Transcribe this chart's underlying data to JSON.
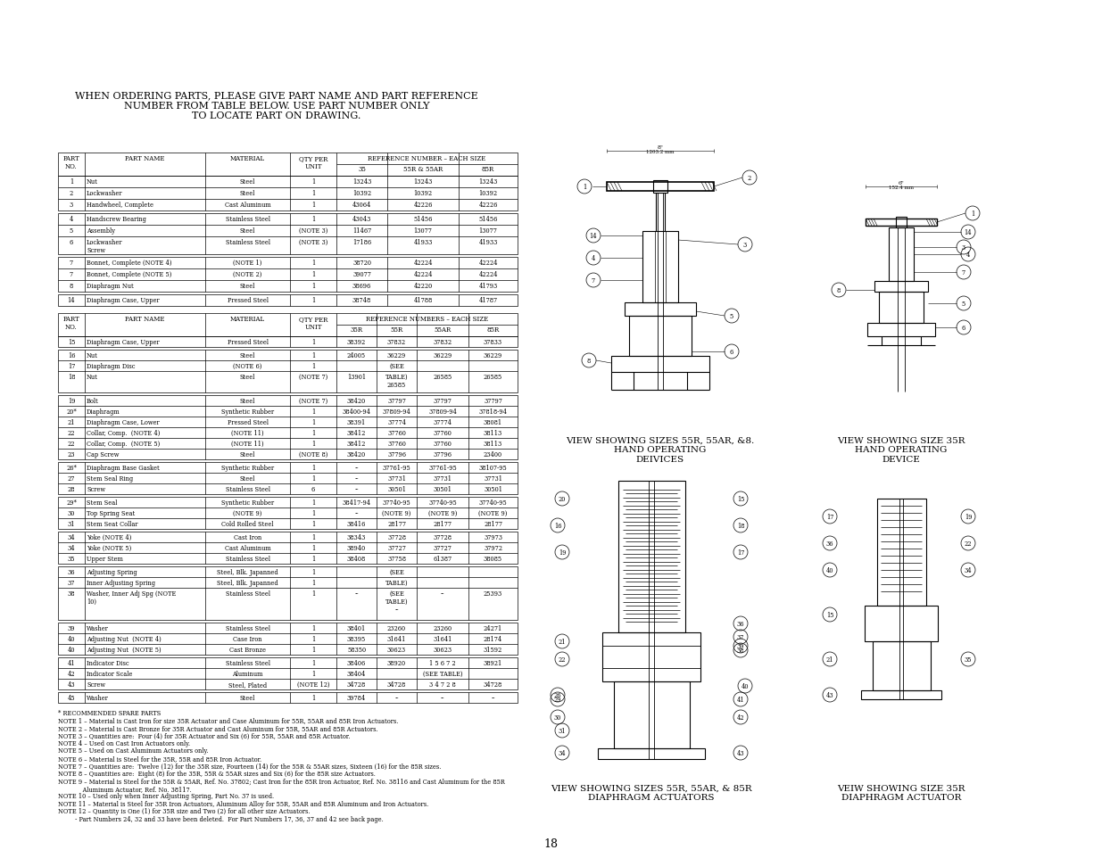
{
  "page_bg": "#ffffff",
  "title_text": "WHEN ORDERING PARTS, PLEASE GIVE PART NAME AND PART REFERENCE\nNUMBER FROM TABLE BELOW. USE PART NUMBER ONLY\nTO LOCATE PART ON DRAWING.",
  "table1_rows": [
    [
      "1",
      "Nut",
      "Steel",
      "1",
      "13243",
      "13243",
      "13243"
    ],
    [
      "2",
      "Lockwasher",
      "Steel",
      "1",
      "10392",
      "10392",
      "10392"
    ],
    [
      "3",
      "Handwheel, Complete",
      "Cast Aluminum",
      "1",
      "43064",
      "42226",
      "42226"
    ],
    [
      "4",
      "Handscrew Bearing",
      "Stainless Steel",
      "1",
      "43043",
      "51456",
      "51456"
    ],
    [
      "5",
      "Assembly",
      "Steel",
      "(NOTE 3)",
      "11467",
      "13077",
      "13077"
    ],
    [
      "6",
      "Lockwasher\nScrew",
      "Stainless Steel",
      "(NOTE 3)",
      "17186",
      "41933",
      "41933"
    ],
    [
      "7",
      "Bonnet, Complete (NOTE 4)",
      "(NOTE 1)",
      "1",
      "38720",
      "42224",
      "42224"
    ],
    [
      "7",
      "Bonnet, Complete (NOTE 5)",
      "(NOTE 2)",
      "1",
      "39077",
      "42224",
      "42224"
    ],
    [
      "8",
      "Diaphragm Nut",
      "Steel",
      "1",
      "38696",
      "42220",
      "41793"
    ],
    [
      "14",
      "Diaphragm Case, Upper",
      "Pressed Steel",
      "1",
      "38748",
      "41788",
      "41787"
    ]
  ],
  "table2_rows": [
    [
      "15",
      "Diaphragm Case, Upper",
      "Pressed Steel",
      "1",
      "38392",
      "37832",
      "37832",
      "37833"
    ],
    [
      "16",
      "Nut",
      "Steel",
      "1",
      "24005",
      "36229",
      "36229",
      "36229"
    ],
    [
      "17",
      "Diaphragm Disc",
      "(NOTE 6)",
      "1",
      "",
      "(SEE",
      "",
      ""
    ],
    [
      "18",
      "Nut",
      "Steel",
      "(NOTE 7)",
      "13901",
      "TABLE)\n26585",
      "26585",
      "26585"
    ],
    [
      "19",
      "Bolt",
      "Steel",
      "(NOTE 7)",
      "38420",
      "37797",
      "37797",
      "37797"
    ],
    [
      "20*",
      "Diaphragm",
      "Synthetic Rubber",
      "1",
      "38400-94",
      "37809-94",
      "37809-94",
      "37818-94"
    ],
    [
      "21",
      "Diaphragm Case, Lower",
      "Pressed Steel",
      "1",
      "38391",
      "37774",
      "37774",
      "38081"
    ],
    [
      "22",
      "Collar, Comp.  (NOTE 4)",
      "(NOTE 11)",
      "1",
      "38412",
      "37760",
      "37760",
      "38113"
    ],
    [
      "22",
      "Collar, Comp.  (NOTE 5)",
      "(NOTE 11)",
      "1",
      "38412",
      "37760",
      "37760",
      "38113"
    ],
    [
      "23",
      "Cap Screw",
      "Steel",
      "(NOTE 8)",
      "38420",
      "37796",
      "37796",
      "23400"
    ],
    [
      "26*",
      "Diaphragm Base Gasket",
      "Synthetic Rubber",
      "1",
      "--",
      "37761-95",
      "37761-95",
      "38107-95"
    ],
    [
      "27",
      "Stem Seal Ring",
      "Steel",
      "1",
      "--",
      "37731",
      "37731",
      "37731"
    ],
    [
      "28",
      "Screw",
      "Stainless Steel",
      "6",
      "--",
      "30501",
      "30501",
      "30501"
    ],
    [
      "29*",
      "Stem Seal",
      "Synthetic Rubber",
      "1",
      "38417-94",
      "37740-95",
      "37740-95",
      "37740-95"
    ],
    [
      "30",
      "Top Spring Seat",
      "(NOTE 9)",
      "1",
      "--",
      "(NOTE 9)",
      "(NOTE 9)",
      "(NOTE 9)"
    ],
    [
      "31",
      "Stem Seat Collar",
      "Cold Rolled Steel",
      "1",
      "38416",
      "28177",
      "28177",
      "28177"
    ],
    [
      "34",
      "Yoke (NOTE 4)",
      "Cast Iron",
      "1",
      "38343",
      "37728",
      "37728",
      "37973"
    ],
    [
      "34",
      "Yoke (NOTE 5)",
      "Cast Aluminum",
      "1",
      "38940",
      "37727",
      "37727",
      "37972"
    ],
    [
      "35",
      "Upper Stem",
      "Stainless Steel",
      "1",
      "38408",
      "37758",
      "61387",
      "38085"
    ],
    [
      "36",
      "Adjusting Spring",
      "Steel, Blk. Japanned",
      "1",
      "",
      "(SEE",
      "",
      ""
    ],
    [
      "37",
      "Inner Adjusting Spring",
      "Steel, Blk. Japanned",
      "1",
      "",
      "TABLE)",
      "",
      ""
    ],
    [
      "38",
      "Washer, Inner Adj Spg (NOTE\n10)",
      "Stainless Steel",
      "1",
      "--",
      "(SEE\nTABLE)\n--",
      "--",
      "25393"
    ],
    [
      "39",
      "Washer",
      "Stainless Steel",
      "1",
      "38401",
      "23260",
      "23260",
      "24271"
    ],
    [
      "40",
      "Adjusting Nut  (NOTE 4)",
      "Case Iron",
      "1",
      "38395",
      "31641",
      "31641",
      "28174"
    ],
    [
      "40",
      "Adjusting Nut  (NOTE 5)",
      "Cast Bronze",
      "1",
      "58350",
      "30623",
      "30623",
      "31592"
    ],
    [
      "41",
      "Indicator Disc",
      "Stainless Steel",
      "1",
      "38406",
      "38920",
      "1 5 6 7 2",
      "38921"
    ],
    [
      "42",
      "Indicator Scale",
      "Aluminum",
      "1",
      "38404",
      "",
      "(SEE TABLE)",
      ""
    ],
    [
      "43",
      "Screw",
      "Steel, Plated",
      "(NOTE 12)",
      "34728",
      "34728",
      "3 4 7 2 8",
      "34728"
    ],
    [
      "45",
      "Washer",
      "Steel",
      "1",
      "39784",
      "--",
      "--",
      "--"
    ]
  ],
  "notes": [
    "* RECOMMENDED SPARE PARTS",
    "NOTE 1 – Material is Cast Iron for size 35R Actuator and Case Aluminum for 55R, 55AR and 85R Iron Actuators.",
    "NOTE 2 – Material is Cast Bronze for 35R Actuator and Cast Aluminum for 55R, 55AR and 85R Actuators.",
    "NOTE 3 – Quantities are:  Four (4) for 35R Actuator and Six (6) for 55R, 55AR and 85R Actuator.",
    "NOTE 4 – Used on Cast Iron Actuators only.",
    "NOTE 5 – Used on Cast Aluminum Actuators only.",
    "NOTE 6 – Material is Steel for the 35R, 55R and 85R Iron Actuator.",
    "NOTE 7 – Quantities are:  Twelve (12) for the 35R size, Fourteen (14) for the 55R & 55AR sizes, Sixteen (16) for the 85R sizes.",
    "NOTE 8 – Quantities are:  Eight (8) for the 35R, 55R & 55AR sizes and Six (6) for the 85R size Actuators.",
    "NOTE 9 – Material is Steel for the 55R & 55AR, Ref. No. 37802; Cast Iron for the 85R Iron Actuator, Ref. No. 38116 and Cast Aluminum for the 85R",
    "             Aluminum Actuator, Ref. No. 38117.",
    "NOTE 10 – Used only when Inner Adjusting Spring, Part No. 37 is used.",
    "NOTE 11 – Material is Steel for 35R Iron Actuators, Aluminum Alloy for 55R, 55AR and 85R Aluminum and Iron Actuators.",
    "NOTE 12 – Quantity is One (1) for 35R size and Two (2) for all other size Actuators.",
    "         - Part Numbers 24, 32 and 33 have been deleted.  For Part Numbers 17, 36, 37 and 42 see back page."
  ],
  "caption1": "VIEW SHOWING SIZES 55R, 55AR, &8.\nHAND OPERATING\nDEIVICES",
  "caption2": "VIEW SHOWING SIZE 35R\nHAND OPERATING\nDEVICE",
  "caption3": "VIEW SHOWING SIZES 55R, 55AR, & 85R\nDIAPHRAGM ACTUATORS",
  "caption4": "VEIW SHOWING SIZE 35R\nDIAPHRAGM ACTUATOR",
  "page_number": "18"
}
